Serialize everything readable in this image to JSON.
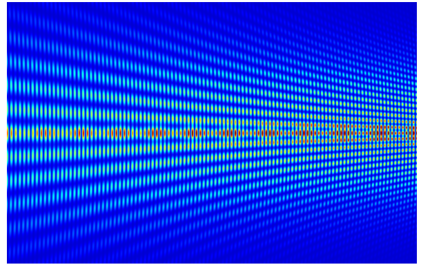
{
  "figure": {
    "kind": "interference intensity map",
    "colormap": "jet",
    "colormap_stops": [
      "#000080",
      "#0000ff",
      "#00ffff",
      "#ffff00",
      "#ff0000",
      "#800000"
    ],
    "background": "#ffffff",
    "axes_visible": false,
    "labels_visible": false
  }
}
